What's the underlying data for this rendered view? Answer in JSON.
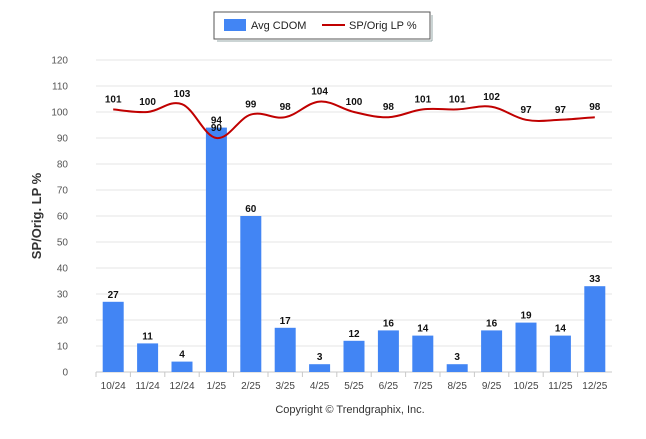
{
  "chart_data": {
    "type": "bar",
    "categories": [
      "10/24",
      "11/24",
      "12/24",
      "1/25",
      "2/25",
      "3/25",
      "4/25",
      "5/25",
      "6/25",
      "7/25",
      "8/25",
      "9/25",
      "10/25",
      "11/25",
      "12/25"
    ],
    "series": [
      {
        "name": "Avg CDOM",
        "type": "bar",
        "color": "#4285f4",
        "values": [
          27,
          11,
          4,
          94,
          60,
          17,
          3,
          12,
          16,
          14,
          3,
          16,
          19,
          14,
          33
        ]
      },
      {
        "name": "SP/Orig LP %",
        "type": "line",
        "color": "#c00000",
        "values": [
          101,
          100,
          103,
          90,
          99,
          98,
          104,
          100,
          98,
          101,
          101,
          102,
          97,
          97,
          98
        ]
      }
    ],
    "ylabel": "SP/Orig. LP %",
    "xlabel": "",
    "ylim": [
      0,
      120
    ],
    "yticks": [
      0,
      10,
      20,
      30,
      40,
      50,
      60,
      70,
      80,
      90,
      100,
      110,
      120
    ],
    "grid": true,
    "legend_position": "top-center",
    "footer": "Copyright © Trendgraphix, Inc."
  }
}
